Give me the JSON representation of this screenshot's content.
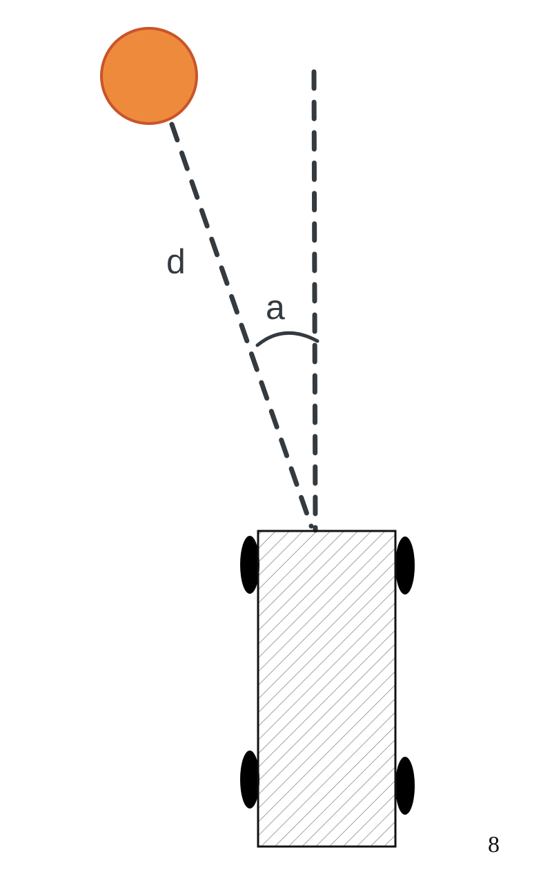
{
  "labels": {
    "distance": "d",
    "angle": "a"
  },
  "page_number": "8",
  "colors": {
    "target_fill": "#ee8a3c",
    "target_stroke": "#c9542a",
    "line": "#333a40",
    "robot_outline": "#111111",
    "hatch": "#8a8a8a",
    "wheel": "#000000"
  }
}
